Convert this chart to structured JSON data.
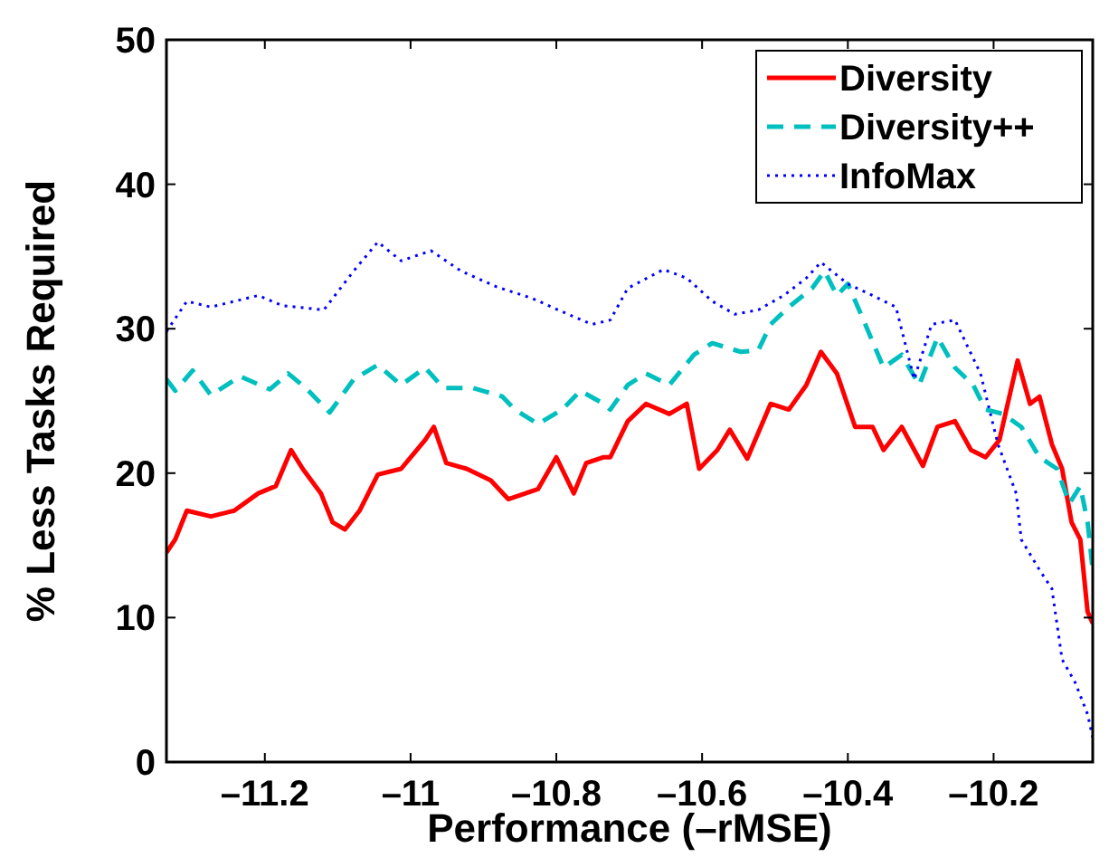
{
  "chart_data": {
    "type": "line",
    "xlabel": "Performance (–rMSE)",
    "ylabel": "% Less Tasks Required",
    "xlim": [
      -11.335,
      -10.064
    ],
    "ylim": [
      0,
      50
    ],
    "xticks": [
      {
        "value": -11.2,
        "label": "–11.2"
      },
      {
        "value": -11,
        "label": "–11"
      },
      {
        "value": -10.8,
        "label": "–10.8"
      },
      {
        "value": -10.6,
        "label": "–10.6"
      },
      {
        "value": -10.4,
        "label": "–10.4"
      },
      {
        "value": -10.2,
        "label": "–10.2"
      }
    ],
    "yticks": [
      0,
      10,
      20,
      30,
      40,
      50
    ],
    "grid": false,
    "legend": "top right",
    "series": [
      {
        "name": "Diversity",
        "color": "#ff0000",
        "line_style": "solid",
        "x": [
          -11.335,
          -11.323,
          -11.307,
          -11.274,
          -11.242,
          -11.209,
          -11.185,
          -11.164,
          -11.148,
          -11.123,
          -11.107,
          -11.09,
          -11.07,
          -11.045,
          -11.013,
          -10.98,
          -10.968,
          -10.951,
          -10.923,
          -10.89,
          -10.866,
          -10.825,
          -10.8,
          -10.776,
          -10.759,
          -10.735,
          -10.726,
          -10.702,
          -10.677,
          -10.645,
          -10.621,
          -10.604,
          -10.579,
          -10.562,
          -10.538,
          -10.506,
          -10.481,
          -10.457,
          -10.437,
          -10.415,
          -10.39,
          -10.366,
          -10.351,
          -10.326,
          -10.297,
          -10.277,
          -10.253,
          -10.231,
          -10.211,
          -10.192,
          -10.167,
          -10.15,
          -10.137,
          -10.12,
          -10.106,
          -10.093,
          -10.081,
          -10.071,
          -10.064
        ],
        "values": [
          14.5,
          15.4,
          17.4,
          17.0,
          17.4,
          18.6,
          19.1,
          21.6,
          20.3,
          18.6,
          16.6,
          16.1,
          17.4,
          19.9,
          20.3,
          22.3,
          23.2,
          20.7,
          20.3,
          19.5,
          18.2,
          18.9,
          21.1,
          18.6,
          20.7,
          21.1,
          21.1,
          23.6,
          24.8,
          24.1,
          24.8,
          20.3,
          21.6,
          23.0,
          21.0,
          24.8,
          24.4,
          26.1,
          28.4,
          26.9,
          23.2,
          23.2,
          21.6,
          23.2,
          20.5,
          23.2,
          23.6,
          21.6,
          21.1,
          22.3,
          27.8,
          24.8,
          25.3,
          22.0,
          20.3,
          16.6,
          15.4,
          10.4,
          9.6
        ]
      },
      {
        "name": "Diversity++",
        "color": "#00bfbf",
        "line_style": "dashed",
        "x": [
          -11.335,
          -11.323,
          -11.299,
          -11.274,
          -11.234,
          -11.193,
          -11.168,
          -11.144,
          -11.111,
          -11.078,
          -11.045,
          -11.013,
          -10.98,
          -10.955,
          -10.915,
          -10.874,
          -10.857,
          -10.825,
          -10.792,
          -10.767,
          -10.735,
          -10.726,
          -10.702,
          -10.677,
          -10.645,
          -10.611,
          -10.586,
          -10.547,
          -10.523,
          -10.506,
          -10.481,
          -10.449,
          -10.432,
          -10.415,
          -10.4,
          -10.376,
          -10.351,
          -10.326,
          -10.302,
          -10.277,
          -10.253,
          -10.228,
          -10.211,
          -10.187,
          -10.162,
          -10.137,
          -10.113,
          -10.096,
          -10.081,
          -10.071,
          -10.064
        ],
        "values": [
          26.5,
          25.7,
          27.1,
          25.4,
          26.7,
          25.8,
          26.9,
          25.9,
          24.2,
          26.5,
          27.5,
          26.1,
          27.3,
          25.9,
          25.9,
          25.3,
          24.4,
          23.4,
          24.4,
          25.7,
          24.8,
          24.4,
          26.1,
          26.9,
          26.1,
          28.2,
          29.0,
          28.4,
          28.5,
          30.3,
          31.5,
          32.8,
          34.0,
          32.3,
          33.1,
          30.3,
          27.3,
          28.2,
          26.1,
          29.4,
          27.3,
          26.1,
          24.4,
          24.1,
          23.2,
          21.1,
          20.3,
          17.9,
          19.1,
          16.6,
          13.3
        ]
      },
      {
        "name": "InfoMax",
        "color": "#0000ff",
        "line_style": "dotted",
        "x": [
          -11.335,
          -11.307,
          -11.274,
          -11.209,
          -11.176,
          -11.119,
          -11.078,
          -11.045,
          -11.013,
          -10.972,
          -10.931,
          -10.882,
          -10.833,
          -10.784,
          -10.751,
          -10.726,
          -10.702,
          -10.653,
          -10.621,
          -10.586,
          -10.555,
          -10.523,
          -10.488,
          -10.457,
          -10.437,
          -10.4,
          -10.366,
          -10.334,
          -10.309,
          -10.285,
          -10.253,
          -10.218,
          -10.194,
          -10.169,
          -10.162,
          -10.137,
          -10.12,
          -10.106,
          -10.088,
          -10.071,
          -10.064
        ],
        "values": [
          29.8,
          31.9,
          31.5,
          32.3,
          31.6,
          31.3,
          34.0,
          36.0,
          34.7,
          35.4,
          34.0,
          32.9,
          32.1,
          31.0,
          30.3,
          30.6,
          32.8,
          34.1,
          33.5,
          31.9,
          31.0,
          31.3,
          32.3,
          33.5,
          34.6,
          33.1,
          32.3,
          31.5,
          26.5,
          30.3,
          30.6,
          26.9,
          22.0,
          18.6,
          15.4,
          13.3,
          12.0,
          7.1,
          5.5,
          3.3,
          1.7
        ]
      }
    ]
  }
}
